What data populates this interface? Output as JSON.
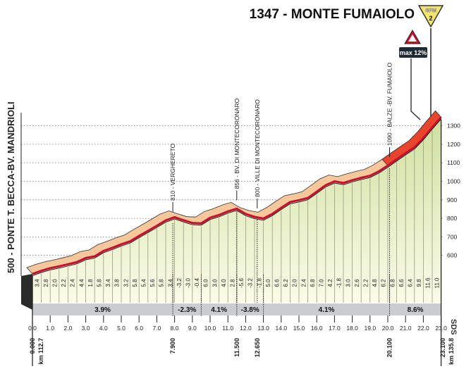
{
  "chart_data": {
    "type": "area",
    "title": "1347 - MONTE FUMAIOLO",
    "climb_badge": {
      "label": "GPM",
      "category": "2",
      "color": "#f3e56a"
    },
    "max_gradient_label": "max 12%",
    "start_altitude": 500,
    "km_step": 0.5,
    "gradients": [
      3.4,
      2.8,
      2.0,
      2.2,
      2.4,
      4.4,
      1.8,
      5.8,
      3.4,
      3.8,
      3.2,
      5.8,
      5.4,
      5.6,
      5.8,
      3.4,
      -3.2,
      -3.0,
      -0.4,
      6.0,
      3.0,
      4.0,
      2.8,
      -5.6,
      -3.2,
      -1.8,
      5.0,
      6.6,
      6.2,
      2.0,
      2.4,
      6.8,
      7.0,
      4.2,
      -1.8,
      3.0,
      2.6,
      2.2,
      4.8,
      6.2,
      6.8,
      6.6,
      6.4,
      9.8,
      11.6,
      11.0
    ],
    "xlim": [
      0,
      23
    ],
    "ylim": [
      500,
      1350
    ],
    "x_ticks": [
      "0.0",
      "1.0",
      "2.0",
      "3.0",
      "4.0",
      "5.0",
      "6.0",
      "7.0",
      "8.0",
      "9.0",
      "10.0",
      "11.0",
      "12.0",
      "13.0",
      "14.0",
      "15.0",
      "16.0",
      "17.0",
      "18.0",
      "19.0",
      "20.0",
      "21.0",
      "22.0",
      "23.0"
    ],
    "y_ticks": [
      600,
      700,
      800,
      900,
      1000,
      1100,
      1200,
      1300
    ],
    "segments": [
      {
        "from": 0,
        "to": 7.9,
        "label": "3.9%"
      },
      {
        "from": 7.9,
        "to": 9.5,
        "label": "-2.3%"
      },
      {
        "from": 9.5,
        "to": 11.5,
        "label": "4.1%"
      },
      {
        "from": 11.5,
        "to": 13.0,
        "label": "-3.8%"
      },
      {
        "from": 13.0,
        "to": 20.1,
        "label": "4.1%"
      },
      {
        "from": 20.1,
        "to": 23.1,
        "label": "8.6%"
      }
    ],
    "waypoints": [
      {
        "km": 0,
        "label": "500 - PONTE T. BECCA-BV. MANDRIOLI",
        "dist": "0.000",
        "km_total": "km 112.7"
      },
      {
        "km": 7.9,
        "label": "810 - VERGHERETO",
        "dist": "7.900"
      },
      {
        "km": 11.5,
        "label": "856 - BV. DI MONTECORONARO",
        "dist": "11.500"
      },
      {
        "km": 12.65,
        "label": "800 - VILLE DI MONTECORONARO",
        "dist": "12.650"
      },
      {
        "km": 20.1,
        "label": "1090 - BALZE -BV. FUMAIOLO",
        "dist": "20.100"
      },
      {
        "km": 23.1,
        "label": "",
        "dist": "23.100",
        "km_total": "km 135.8"
      }
    ],
    "sponsor": "SDS",
    "colors": {
      "road": "#c8102e",
      "top_band": "#f5c79a",
      "final_climb": "#e8452c",
      "fill": "#e6efc4",
      "gradient_band": "#c9ccd0"
    }
  }
}
